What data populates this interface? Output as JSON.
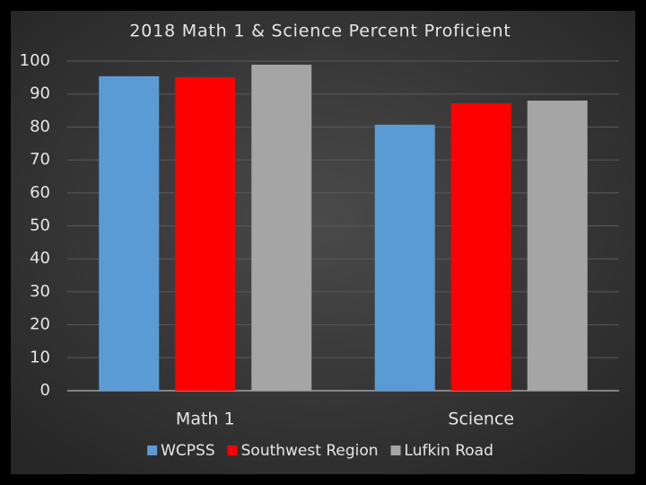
{
  "chart_data": {
    "type": "bar",
    "title": "2018 Math 1 & Science Percent Proficient",
    "categories": [
      "Math 1",
      "Science"
    ],
    "series": [
      {
        "name": "WCPSS",
        "color": "#5b9bd5",
        "values": [
          95.4,
          80.7
        ]
      },
      {
        "name": "Southwest Region",
        "color": "#ff0000",
        "values": [
          95.1,
          87.2
        ]
      },
      {
        "name": "Lufkin Road",
        "color": "#a5a5a5",
        "values": [
          98.9,
          88.0
        ]
      }
    ],
    "ylim": [
      0,
      100
    ],
    "yticks": [
      0,
      10,
      20,
      30,
      40,
      50,
      60,
      70,
      80,
      90,
      100
    ],
    "grid": true
  }
}
